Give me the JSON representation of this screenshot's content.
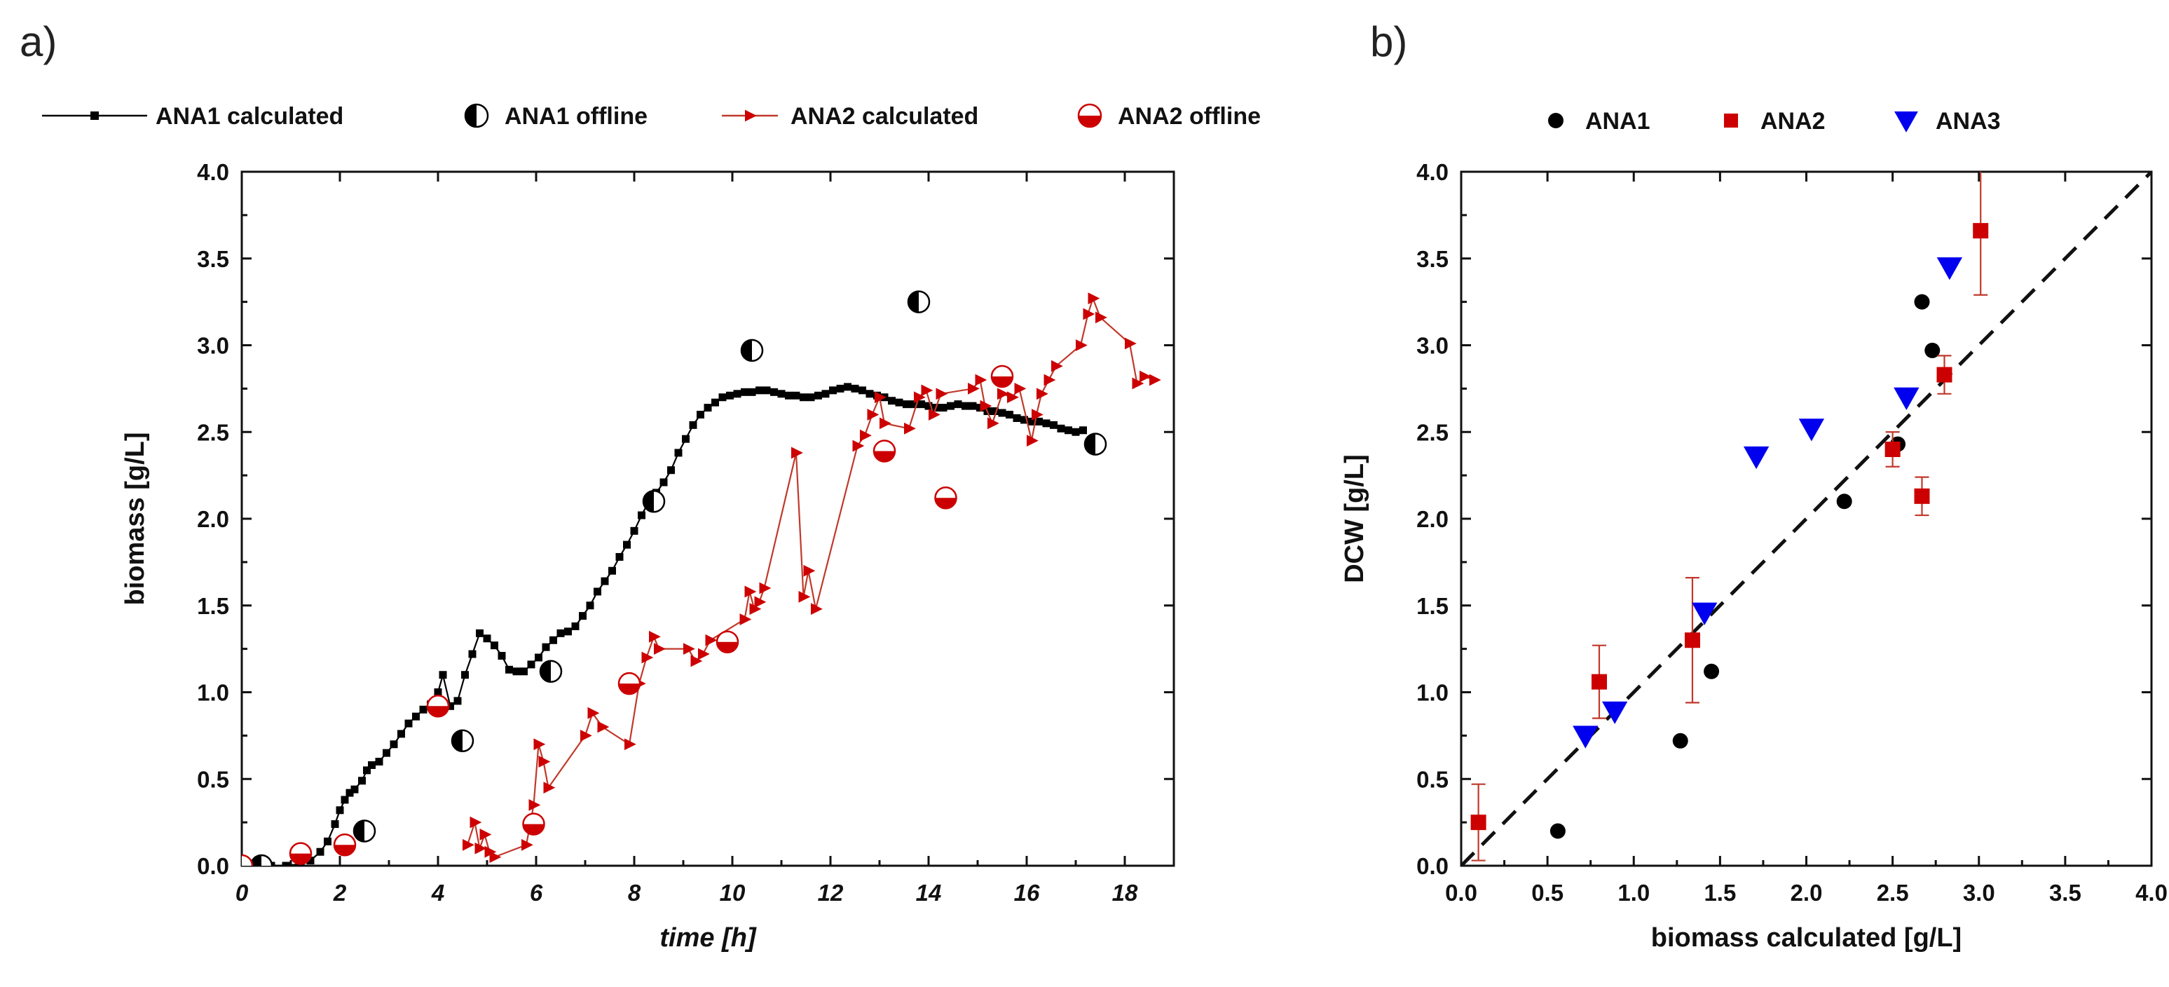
{
  "figure": {
    "panel_a_label": "a)",
    "panel_b_label": "b)"
  },
  "colors": {
    "ana1": "#000000",
    "ana2": "#cc0000",
    "ana2_line": "#c0392b",
    "ana3": "#0000ee",
    "axis": "#111111"
  },
  "chart_data": [
    {
      "type": "line",
      "panel": "a)",
      "xlabel": "time [h]",
      "ylabel": "biomass [g/L]",
      "xlim": [
        0,
        19
      ],
      "ylim": [
        0,
        4.0
      ],
      "x_ticks": [
        0,
        2,
        4,
        6,
        8,
        10,
        12,
        14,
        16,
        18
      ],
      "x_tick_labels": [
        "0",
        "2",
        "4",
        "6",
        "8",
        "10",
        "12",
        "14",
        "16",
        "18"
      ],
      "y_ticks": [
        0,
        0.5,
        1.0,
        1.5,
        2.0,
        2.5,
        3.0,
        3.5,
        4.0
      ],
      "y_tick_labels": [
        "0.0",
        "0.5",
        "1.0",
        "1.5",
        "2.0",
        "2.5",
        "3.0",
        "3.5",
        "4.0"
      ],
      "legend_position": "top",
      "series": [
        {
          "name": "ANA1 calculated",
          "marker": "square",
          "line": true,
          "points": [
            [
              0.0,
              0.0
            ],
            [
              0.3,
              0.0
            ],
            [
              0.6,
              0.0
            ],
            [
              0.9,
              0.0
            ],
            [
              1.2,
              0.01
            ],
            [
              1.4,
              0.03
            ],
            [
              1.6,
              0.08
            ],
            [
              1.75,
              0.14
            ],
            [
              1.9,
              0.24
            ],
            [
              2.0,
              0.32
            ],
            [
              2.1,
              0.38
            ],
            [
              2.2,
              0.42
            ],
            [
              2.3,
              0.44
            ],
            [
              2.45,
              0.49
            ],
            [
              2.55,
              0.55
            ],
            [
              2.65,
              0.58
            ],
            [
              2.8,
              0.6
            ],
            [
              2.95,
              0.65
            ],
            [
              3.1,
              0.7
            ],
            [
              3.25,
              0.76
            ],
            [
              3.4,
              0.82
            ],
            [
              3.55,
              0.86
            ],
            [
              3.7,
              0.9
            ],
            [
              3.85,
              0.93
            ],
            [
              4.0,
              1.0
            ],
            [
              4.1,
              1.1
            ],
            [
              4.25,
              0.92
            ],
            [
              4.4,
              0.95
            ],
            [
              4.55,
              1.1
            ],
            [
              4.7,
              1.22
            ],
            [
              4.85,
              1.34
            ],
            [
              5.0,
              1.31
            ],
            [
              5.15,
              1.27
            ],
            [
              5.3,
              1.21
            ],
            [
              5.45,
              1.13
            ],
            [
              5.6,
              1.12
            ],
            [
              5.75,
              1.12
            ],
            [
              5.9,
              1.16
            ],
            [
              6.05,
              1.2
            ],
            [
              6.2,
              1.26
            ],
            [
              6.35,
              1.3
            ],
            [
              6.5,
              1.34
            ],
            [
              6.65,
              1.35
            ],
            [
              6.8,
              1.38
            ],
            [
              6.95,
              1.44
            ],
            [
              7.1,
              1.5
            ],
            [
              7.25,
              1.58
            ],
            [
              7.4,
              1.64
            ],
            [
              7.55,
              1.7
            ],
            [
              7.7,
              1.78
            ],
            [
              7.85,
              1.85
            ],
            [
              8.0,
              1.93
            ],
            [
              8.15,
              2.02
            ],
            [
              8.3,
              2.1
            ],
            [
              8.45,
              2.15
            ],
            [
              8.6,
              2.21
            ],
            [
              8.75,
              2.28
            ],
            [
              8.9,
              2.38
            ],
            [
              9.05,
              2.46
            ],
            [
              9.2,
              2.54
            ],
            [
              9.35,
              2.6
            ],
            [
              9.5,
              2.64
            ],
            [
              9.65,
              2.67
            ],
            [
              9.8,
              2.7
            ],
            [
              9.95,
              2.71
            ],
            [
              10.1,
              2.72
            ],
            [
              10.25,
              2.73
            ],
            [
              10.4,
              2.73
            ],
            [
              10.55,
              2.74
            ],
            [
              10.7,
              2.74
            ],
            [
              10.85,
              2.73
            ],
            [
              11.0,
              2.72
            ],
            [
              11.15,
              2.71
            ],
            [
              11.3,
              2.71
            ],
            [
              11.45,
              2.7
            ],
            [
              11.6,
              2.7
            ],
            [
              11.75,
              2.71
            ],
            [
              11.9,
              2.72
            ],
            [
              12.05,
              2.74
            ],
            [
              12.2,
              2.75
            ],
            [
              12.35,
              2.76
            ],
            [
              12.5,
              2.75
            ],
            [
              12.65,
              2.74
            ],
            [
              12.8,
              2.72
            ],
            [
              12.95,
              2.71
            ],
            [
              13.1,
              2.7
            ],
            [
              13.25,
              2.68
            ],
            [
              13.4,
              2.67
            ],
            [
              13.55,
              2.66
            ],
            [
              13.7,
              2.66
            ],
            [
              13.85,
              2.66
            ],
            [
              14.0,
              2.65
            ],
            [
              14.15,
              2.64
            ],
            [
              14.3,
              2.64
            ],
            [
              14.45,
              2.65
            ],
            [
              14.6,
              2.66
            ],
            [
              14.75,
              2.65
            ],
            [
              14.9,
              2.65
            ],
            [
              15.05,
              2.64
            ],
            [
              15.2,
              2.62
            ],
            [
              15.35,
              2.62
            ],
            [
              15.5,
              2.61
            ],
            [
              15.65,
              2.6
            ],
            [
              15.8,
              2.58
            ],
            [
              15.95,
              2.57
            ],
            [
              16.1,
              2.56
            ],
            [
              16.25,
              2.56
            ],
            [
              16.4,
              2.55
            ],
            [
              16.55,
              2.54
            ],
            [
              16.7,
              2.52
            ],
            [
              16.85,
              2.51
            ],
            [
              17.0,
              2.5
            ],
            [
              17.15,
              2.51
            ]
          ]
        },
        {
          "name": "ANA1 offline",
          "marker": "half-circle",
          "line": false,
          "points": [
            [
              0.4,
              0.0
            ],
            [
              2.5,
              0.2
            ],
            [
              4.5,
              0.72
            ],
            [
              6.3,
              1.12
            ],
            [
              8.4,
              2.1
            ],
            [
              10.4,
              2.97
            ],
            [
              13.8,
              3.25
            ],
            [
              17.4,
              2.43
            ]
          ]
        },
        {
          "name": "ANA2 calculated",
          "marker": "triangle-right",
          "line": true,
          "points": [
            [
              4.6,
              0.12
            ],
            [
              4.75,
              0.25
            ],
            [
              4.85,
              0.1
            ],
            [
              4.95,
              0.18
            ],
            [
              5.05,
              0.08
            ],
            [
              5.15,
              0.05
            ],
            [
              5.8,
              0.12
            ],
            [
              5.95,
              0.35
            ],
            [
              6.05,
              0.7
            ],
            [
              6.15,
              0.6
            ],
            [
              6.25,
              0.45
            ],
            [
              7.0,
              0.75
            ],
            [
              7.15,
              0.88
            ],
            [
              7.35,
              0.8
            ],
            [
              7.9,
              0.7
            ],
            [
              8.1,
              1.05
            ],
            [
              8.25,
              1.2
            ],
            [
              8.4,
              1.32
            ],
            [
              8.5,
              1.25
            ],
            [
              9.1,
              1.25
            ],
            [
              9.25,
              1.18
            ],
            [
              9.4,
              1.22
            ],
            [
              9.55,
              1.3
            ],
            [
              10.25,
              1.42
            ],
            [
              10.35,
              1.58
            ],
            [
              10.45,
              1.48
            ],
            [
              10.55,
              1.52
            ],
            [
              10.65,
              1.6
            ],
            [
              11.3,
              2.38
            ],
            [
              11.45,
              1.55
            ],
            [
              11.55,
              1.7
            ],
            [
              11.7,
              1.48
            ],
            [
              12.55,
              2.42
            ],
            [
              12.7,
              2.48
            ],
            [
              12.85,
              2.6
            ],
            [
              13.0,
              2.7
            ],
            [
              13.1,
              2.55
            ],
            [
              13.6,
              2.52
            ],
            [
              13.8,
              2.7
            ],
            [
              13.95,
              2.74
            ],
            [
              14.1,
              2.6
            ],
            [
              14.25,
              2.72
            ],
            [
              14.9,
              2.75
            ],
            [
              15.05,
              2.8
            ],
            [
              15.15,
              2.65
            ],
            [
              15.3,
              2.55
            ],
            [
              15.5,
              2.72
            ],
            [
              15.7,
              2.7
            ],
            [
              15.85,
              2.75
            ],
            [
              16.1,
              2.45
            ],
            [
              16.2,
              2.6
            ],
            [
              16.3,
              2.72
            ],
            [
              16.45,
              2.8
            ],
            [
              16.6,
              2.88
            ],
            [
              17.1,
              3.0
            ],
            [
              17.25,
              3.18
            ],
            [
              17.35,
              3.27
            ],
            [
              17.5,
              3.16
            ],
            [
              18.1,
              3.01
            ],
            [
              18.25,
              2.78
            ],
            [
              18.4,
              2.82
            ],
            [
              18.6,
              2.8
            ]
          ]
        },
        {
          "name": "ANA2 offline",
          "marker": "half-circle-red",
          "line": false,
          "points": [
            [
              0.0,
              0.0
            ],
            [
              1.2,
              0.07
            ],
            [
              2.1,
              0.12
            ],
            [
              4.0,
              0.92
            ],
            [
              5.95,
              0.24
            ],
            [
              7.9,
              1.05
            ],
            [
              9.9,
              1.29
            ],
            [
              13.1,
              2.39
            ],
            [
              14.35,
              2.12
            ],
            [
              15.5,
              2.82
            ]
          ]
        }
      ]
    },
    {
      "type": "scatter",
      "panel": "b)",
      "xlabel": "biomass calculated [g/L]",
      "ylabel": "DCW [g/L]",
      "xlim": [
        0,
        4.0
      ],
      "ylim": [
        0,
        4.0
      ],
      "x_ticks": [
        0,
        0.5,
        1.0,
        1.5,
        2.0,
        2.5,
        3.0,
        3.5,
        4.0
      ],
      "x_tick_labels": [
        "0.0",
        "0.5",
        "1.0",
        "1.5",
        "2.0",
        "2.5",
        "3.0",
        "3.5",
        "4.0"
      ],
      "y_ticks": [
        0,
        0.5,
        1.0,
        1.5,
        2.0,
        2.5,
        3.0,
        3.5,
        4.0
      ],
      "y_tick_labels": [
        "0.0",
        "0.5",
        "1.0",
        "1.5",
        "2.0",
        "2.5",
        "3.0",
        "3.5",
        "4.0"
      ],
      "legend_position": "top",
      "reference_line": {
        "style": "dashed",
        "from": [
          0,
          0
        ],
        "to": [
          4.0,
          4.0
        ]
      },
      "series": [
        {
          "name": "ANA1",
          "marker": "circle",
          "points": [
            [
              0.56,
              0.2
            ],
            [
              1.27,
              0.72
            ],
            [
              1.45,
              1.12
            ],
            [
              2.22,
              2.1
            ],
            [
              2.53,
              2.43
            ],
            [
              2.67,
              3.25
            ],
            [
              2.73,
              2.97
            ]
          ]
        },
        {
          "name": "ANA2",
          "marker": "square",
          "points": [
            {
              "x": 0.1,
              "y": 0.25,
              "err": 0.22
            },
            {
              "x": 0.8,
              "y": 1.06,
              "err": 0.21
            },
            {
              "x": 1.34,
              "y": 1.3,
              "err": 0.36
            },
            {
              "x": 2.5,
              "y": 2.4,
              "err": 0.1
            },
            {
              "x": 2.67,
              "y": 2.13,
              "err": 0.11
            },
            {
              "x": 2.8,
              "y": 2.83,
              "err": 0.11
            },
            {
              "x": 3.01,
              "y": 3.66,
              "err": 0.37
            }
          ]
        },
        {
          "name": "ANA3",
          "marker": "triangle-down",
          "points": [
            [
              0.72,
              0.75
            ],
            [
              0.89,
              0.89
            ],
            [
              1.41,
              1.46
            ],
            [
              1.71,
              2.36
            ],
            [
              2.03,
              2.52
            ],
            [
              2.58,
              2.7
            ],
            [
              2.83,
              3.45
            ]
          ]
        }
      ]
    }
  ]
}
